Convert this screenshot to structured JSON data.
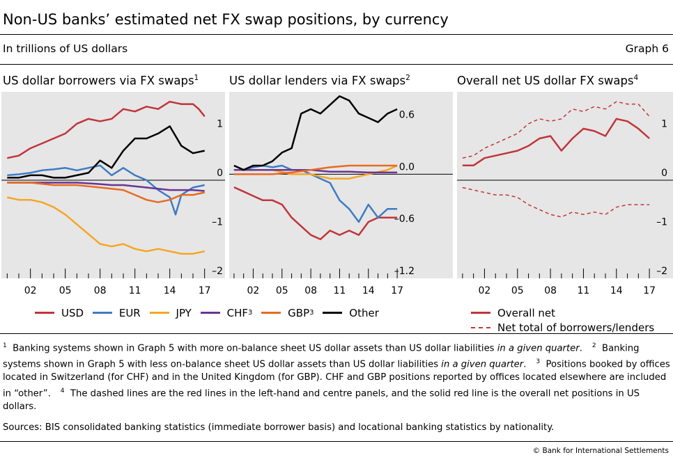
{
  "title": "Non-US banks’ estimated net FX swap positions, by currency",
  "unit": "In trillions of US dollars",
  "graph_number": "Graph 6",
  "colors": {
    "USD": "#c0353a",
    "EUR": "#3d7cc4",
    "JPY": "#f5a623",
    "CHF": "#6b3494",
    "GBP": "#e76b21",
    "Other": "#000000",
    "panel_bg": "#e6e6e6"
  },
  "panels": [
    {
      "title": "US dollar borrowers via FX swaps",
      "sup": "1"
    },
    {
      "title": "US dollar lenders via FX swaps",
      "sup": "2"
    },
    {
      "title": "Overall net US dollar FX swaps",
      "sup": "4"
    }
  ],
  "legend_left": [
    {
      "label": "USD",
      "sup": ""
    },
    {
      "label": "EUR",
      "sup": ""
    },
    {
      "label": "JPY",
      "sup": ""
    },
    {
      "label": "CHF",
      "sup": "3"
    },
    {
      "label": "GBP",
      "sup": "3"
    },
    {
      "label": "Other",
      "sup": ""
    }
  ],
  "legend_right": [
    {
      "label": "Overall net",
      "style": "solid"
    },
    {
      "label": "Net total of borrowers/lenders",
      "style": "dashed"
    }
  ],
  "footnotes": [
    {
      "num": "1",
      "parts": [
        {
          "t": "Banking systems shown in Graph 5 with more on-balance sheet US dollar assets than US dollar liabilities "
        },
        {
          "t": "in a given quarter",
          "i": true
        },
        {
          "t": "."
        }
      ]
    },
    {
      "num": "2",
      "parts": [
        {
          "t": "Banking systems shown in Graph 5 with less on-balance sheet US dollar assets than US dollar liabilities "
        },
        {
          "t": "in a given quarter",
          "i": true
        },
        {
          "t": "."
        }
      ]
    },
    {
      "num": "3",
      "parts": [
        {
          "t": "Positions booked by offices located in Switzerland (for CHF) and in the United Kingdom (for GBP). CHF and GBP positions reported by offices located elsewhere are included in “other”."
        }
      ]
    },
    {
      "num": "4",
      "parts": [
        {
          "t": "The dashed lines are the red lines in the left-hand and centre panels, and the solid red line is the overall net positions in US dollars."
        }
      ]
    }
  ],
  "sources": "Sources: BIS consolidated banking statistics (immediate borrower basis) and locational banking statistics by nationality.",
  "copyright": "© Bank for International Settlements",
  "chart_data": [
    {
      "type": "line",
      "title": "US dollar borrowers via FX swaps",
      "x_ticks": [
        "02",
        "05",
        "08",
        "11",
        "14",
        "17"
      ],
      "xlim": [
        1999.5,
        2017.5
      ],
      "ylim": [
        -2,
        1.8
      ],
      "y_ticks": [
        1,
        0,
        -1,
        -2
      ],
      "y_tick_labels": [
        "1",
        "0",
        "–1",
        "–2"
      ],
      "axis_side": "right",
      "series": [
        {
          "name": "USD",
          "color": "#c0353a",
          "x": [
            2000,
            2001,
            2002,
            2003,
            2004,
            2005,
            2006,
            2007,
            2008,
            2009,
            2010,
            2011,
            2012,
            2013,
            2014,
            2015,
            2016,
            2016.5,
            2017
          ],
          "y": [
            0.45,
            0.5,
            0.65,
            0.75,
            0.85,
            0.95,
            1.15,
            1.25,
            1.2,
            1.25,
            1.45,
            1.4,
            1.5,
            1.45,
            1.6,
            1.55,
            1.55,
            1.45,
            1.3
          ]
        },
        {
          "name": "EUR",
          "color": "#3d7cc4",
          "x": [
            2000,
            2001,
            2002,
            2003,
            2004,
            2005,
            2006,
            2007,
            2008,
            2009,
            2010,
            2011,
            2012,
            2013,
            2014,
            2014.5,
            2015,
            2016,
            2017
          ],
          "y": [
            0.1,
            0.12,
            0.15,
            0.2,
            0.22,
            0.25,
            0.2,
            0.25,
            0.3,
            0.1,
            0.25,
            0.1,
            0.0,
            -0.2,
            -0.35,
            -0.7,
            -0.3,
            -0.15,
            -0.1
          ]
        },
        {
          "name": "JPY",
          "color": "#f5a623",
          "x": [
            2000,
            2001,
            2002,
            2003,
            2004,
            2005,
            2006,
            2007,
            2008,
            2009,
            2010,
            2011,
            2012,
            2013,
            2014,
            2015,
            2016,
            2017
          ],
          "y": [
            -0.35,
            -0.4,
            -0.4,
            -0.45,
            -0.55,
            -0.7,
            -0.9,
            -1.1,
            -1.3,
            -1.35,
            -1.3,
            -1.4,
            -1.45,
            -1.4,
            -1.45,
            -1.5,
            -1.5,
            -1.45
          ]
        },
        {
          "name": "CHF",
          "color": "#6b3494",
          "x": [
            2000,
            2002,
            2004,
            2006,
            2008,
            2009,
            2010,
            2012,
            2014,
            2016,
            2017
          ],
          "y": [
            -0.05,
            -0.05,
            -0.05,
            -0.05,
            -0.08,
            -0.1,
            -0.1,
            -0.15,
            -0.2,
            -0.2,
            -0.22
          ]
        },
        {
          "name": "GBP",
          "color": "#e76b21",
          "x": [
            2000,
            2002,
            2004,
            2006,
            2008,
            2010,
            2011,
            2012,
            2013,
            2014,
            2015,
            2016,
            2017
          ],
          "y": [
            -0.05,
            -0.05,
            -0.1,
            -0.1,
            -0.15,
            -0.2,
            -0.3,
            -0.4,
            -0.45,
            -0.4,
            -0.3,
            -0.3,
            -0.25
          ]
        },
        {
          "name": "Other",
          "color": "#000000",
          "x": [
            2000,
            2001,
            2002,
            2003,
            2004,
            2005,
            2006,
            2007,
            2008,
            2009,
            2010,
            2011,
            2012,
            2013,
            2014,
            2015,
            2016,
            2017
          ],
          "y": [
            0.05,
            0.05,
            0.1,
            0.1,
            0.05,
            0.05,
            0.1,
            0.15,
            0.4,
            0.25,
            0.6,
            0.85,
            0.85,
            0.95,
            1.1,
            0.7,
            0.55,
            0.6
          ]
        }
      ]
    },
    {
      "type": "line",
      "title": "US dollar lenders via FX swaps",
      "x_ticks": [
        "02",
        "05",
        "08",
        "11",
        "14",
        "17"
      ],
      "xlim": [
        1999.5,
        2017.5
      ],
      "ylim": [
        -1.2,
        0.95
      ],
      "y_ticks": [
        0.6,
        0.0,
        -0.6,
        -1.2
      ],
      "y_tick_labels": [
        "0.6",
        "0.0",
        "–0.6",
        "–1.2"
      ],
      "axis_side": "right",
      "series": [
        {
          "name": "USD",
          "color": "#c0353a",
          "x": [
            2000,
            2001,
            2002,
            2003,
            2004,
            2005,
            2006,
            2007,
            2008,
            2009,
            2010,
            2011,
            2012,
            2013,
            2014,
            2015,
            2016,
            2017
          ],
          "y": [
            -0.15,
            -0.2,
            -0.25,
            -0.3,
            -0.3,
            -0.35,
            -0.5,
            -0.6,
            -0.7,
            -0.75,
            -0.65,
            -0.7,
            -0.65,
            -0.7,
            -0.55,
            -0.5,
            -0.5,
            -0.5
          ]
        },
        {
          "name": "EUR",
          "color": "#3d7cc4",
          "x": [
            2000,
            2001,
            2002,
            2003,
            2004,
            2005,
            2006,
            2007,
            2008,
            2009,
            2010,
            2011,
            2012,
            2013,
            2014,
            2015,
            2016,
            2017
          ],
          "y": [
            0.05,
            0.05,
            0.08,
            0.1,
            0.08,
            0.1,
            0.05,
            0.05,
            0.0,
            -0.05,
            -0.1,
            -0.3,
            -0.4,
            -0.55,
            -0.35,
            -0.5,
            -0.4,
            -0.4
          ]
        },
        {
          "name": "JPY",
          "color": "#f5a623",
          "x": [
            2000,
            2002,
            2004,
            2006,
            2008,
            2010,
            2012,
            2014,
            2016,
            2017
          ],
          "y": [
            0.05,
            0.05,
            0.05,
            0.0,
            0.0,
            -0.05,
            -0.05,
            0.0,
            0.05,
            0.1
          ]
        },
        {
          "name": "CHF",
          "color": "#6b3494",
          "x": [
            2000,
            2002,
            2004,
            2006,
            2008,
            2010,
            2012,
            2014,
            2016,
            2017
          ],
          "y": [
            0.05,
            0.05,
            0.05,
            0.05,
            0.05,
            0.03,
            0.03,
            0.02,
            0.02,
            0.02
          ]
        },
        {
          "name": "GBP",
          "color": "#e76b21",
          "x": [
            2000,
            2002,
            2004,
            2006,
            2008,
            2010,
            2012,
            2014,
            2016,
            2017
          ],
          "y": [
            0.0,
            0.0,
            0.0,
            0.02,
            0.05,
            0.08,
            0.1,
            0.1,
            0.1,
            0.1
          ]
        },
        {
          "name": "Other",
          "color": "#000000",
          "x": [
            2000,
            2001,
            2002,
            2003,
            2004,
            2005,
            2006,
            2007,
            2008,
            2009,
            2010,
            2011,
            2012,
            2013,
            2014,
            2015,
            2016,
            2017
          ],
          "y": [
            0.1,
            0.05,
            0.1,
            0.1,
            0.15,
            0.25,
            0.3,
            0.7,
            0.75,
            0.7,
            0.8,
            0.9,
            0.85,
            0.7,
            0.65,
            0.6,
            0.7,
            0.75
          ]
        }
      ]
    },
    {
      "type": "line",
      "title": "Overall net US dollar FX swaps",
      "x_ticks": [
        "02",
        "05",
        "08",
        "11",
        "14",
        "17"
      ],
      "xlim": [
        1999.5,
        2017.5
      ],
      "ylim": [
        -2,
        1.8
      ],
      "y_ticks": [
        1,
        0,
        -1,
        -2
      ],
      "y_tick_labels": [
        "1",
        "0",
        "–1",
        "–2"
      ],
      "axis_side": "right",
      "series": [
        {
          "name": "Overall net",
          "color": "#c0353a",
          "style": "solid",
          "x": [
            2000,
            2001,
            2002,
            2003,
            2004,
            2005,
            2006,
            2007,
            2008,
            2009,
            2010,
            2011,
            2012,
            2013,
            2014,
            2015,
            2016,
            2017
          ],
          "y": [
            0.3,
            0.3,
            0.45,
            0.5,
            0.55,
            0.6,
            0.7,
            0.85,
            0.9,
            0.6,
            0.85,
            1.05,
            1.0,
            0.9,
            1.25,
            1.2,
            1.05,
            0.85
          ]
        },
        {
          "name": "Net total of borrowers/lenders",
          "color": "#c0353a",
          "style": "dashed",
          "x": [
            2000,
            2001,
            2002,
            2003,
            2004,
            2005,
            2006,
            2007,
            2008,
            2009,
            2010,
            2011,
            2012,
            2013,
            2014,
            2015,
            2016,
            2017
          ],
          "y": [
            0.45,
            0.5,
            0.65,
            0.75,
            0.85,
            0.95,
            1.15,
            1.25,
            1.2,
            1.25,
            1.45,
            1.4,
            1.5,
            1.45,
            1.6,
            1.55,
            1.55,
            1.3
          ]
        },
        {
          "name": "Net total of borrowers/lenders",
          "color": "#c0353a",
          "style": "dashed",
          "x": [
            2000,
            2001,
            2002,
            2003,
            2004,
            2005,
            2006,
            2007,
            2008,
            2009,
            2010,
            2011,
            2012,
            2013,
            2014,
            2015,
            2016,
            2017
          ],
          "y": [
            -0.15,
            -0.2,
            -0.25,
            -0.3,
            -0.3,
            -0.35,
            -0.5,
            -0.6,
            -0.7,
            -0.75,
            -0.65,
            -0.7,
            -0.65,
            -0.7,
            -0.55,
            -0.5,
            -0.5,
            -0.5
          ]
        }
      ]
    }
  ]
}
